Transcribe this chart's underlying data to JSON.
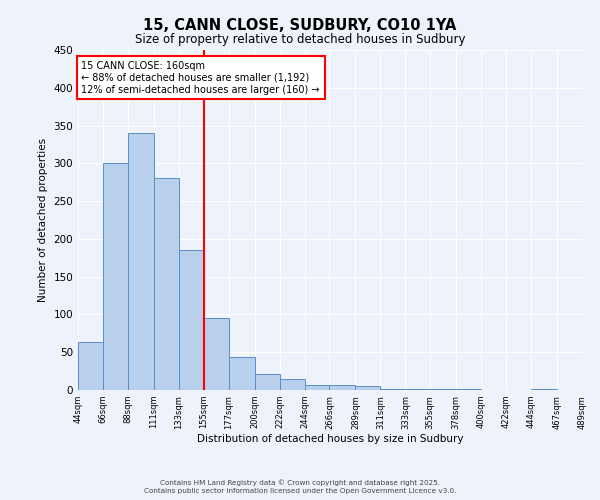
{
  "title": "15, CANN CLOSE, SUDBURY, CO10 1YA",
  "subtitle": "Size of property relative to detached houses in Sudbury",
  "xlabel": "Distribution of detached houses by size in Sudbury",
  "ylabel": "Number of detached properties",
  "bar_color": "#b8d0eb",
  "bar_edge_color": "#5b8fc9",
  "background_color": "#eef2fb",
  "grid_color": "#ffffff",
  "vline_x": 155,
  "vline_color": "red",
  "annotation_title": "15 CANN CLOSE: 160sqm",
  "annotation_line1": "← 88% of detached houses are smaller (1,192)",
  "annotation_line2": "12% of semi-detached houses are larger (160) →",
  "annotation_box_color": "white",
  "annotation_box_edge": "red",
  "bin_edges": [
    44,
    66,
    88,
    111,
    133,
    155,
    177,
    200,
    222,
    244,
    266,
    289,
    311,
    333,
    355,
    378,
    400,
    422,
    444,
    467,
    489
  ],
  "bar_heights": [
    63,
    301,
    340,
    280,
    185,
    95,
    44,
    21,
    14,
    7,
    6,
    5,
    1,
    1,
    1,
    1,
    0,
    0,
    1,
    0
  ],
  "ylim": [
    0,
    450
  ],
  "yticks": [
    0,
    50,
    100,
    150,
    200,
    250,
    300,
    350,
    400,
    450
  ],
  "footer1": "Contains HM Land Registry data © Crown copyright and database right 2025.",
  "footer2": "Contains public sector information licensed under the Open Government Licence v3.0."
}
